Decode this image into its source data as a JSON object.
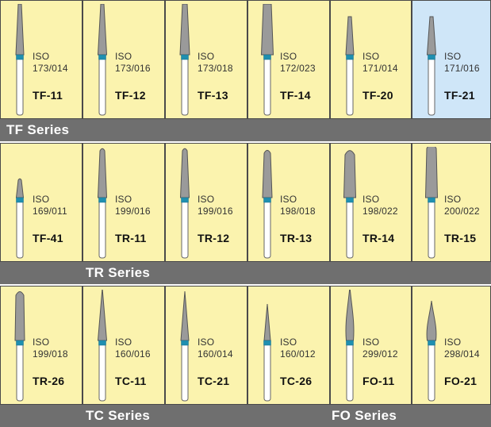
{
  "sections": [
    {
      "labels": [
        "TF Series"
      ],
      "items": [
        {
          "iso": "ISO",
          "size": "173/014",
          "code": "TF-11",
          "highlight": false
        },
        {
          "iso": "ISO",
          "size": "173/016",
          "code": "TF-12",
          "highlight": false
        },
        {
          "iso": "ISO",
          "size": "173/018",
          "code": "TF-13",
          "highlight": false
        },
        {
          "iso": "ISO",
          "size": "172/023",
          "code": "TF-14",
          "highlight": false
        },
        {
          "iso": "ISO",
          "size": "171/014",
          "code": "TF-20",
          "highlight": false
        },
        {
          "iso": "ISO",
          "size": "171/016",
          "code": "TF-21",
          "highlight": true
        }
      ]
    },
    {
      "labels": [
        "TR Series"
      ],
      "items": [
        {
          "iso": "ISO",
          "size": "169/011",
          "code": "TF-41",
          "highlight": false
        },
        {
          "iso": "ISO",
          "size": "199/016",
          "code": "TR-11",
          "highlight": false
        },
        {
          "iso": "ISO",
          "size": "199/016",
          "code": "TR-12",
          "highlight": false
        },
        {
          "iso": "ISO",
          "size": "198/018",
          "code": "TR-13",
          "highlight": false
        },
        {
          "iso": "ISO",
          "size": "198/022",
          "code": "TR-14",
          "highlight": false
        },
        {
          "iso": "ISO",
          "size": "200/022",
          "code": "TR-15",
          "highlight": false
        }
      ]
    },
    {
      "labels": [
        "TC Series",
        "FO Series"
      ],
      "items": [
        {
          "iso": "ISO",
          "size": "199/018",
          "code": "TR-26",
          "highlight": false
        },
        {
          "iso": "ISO",
          "size": "160/016",
          "code": "TC-11",
          "highlight": false
        },
        {
          "iso": "ISO",
          "size": "160/014",
          "code": "TC-21",
          "highlight": false
        },
        {
          "iso": "ISO",
          "size": "160/012",
          "code": "TC-26",
          "highlight": false
        },
        {
          "iso": "ISO",
          "size": "299/012",
          "code": "FO-11",
          "highlight": false
        },
        {
          "iso": "ISO",
          "size": "298/014",
          "code": "FO-21",
          "highlight": false
        }
      ]
    }
  ],
  "colors": {
    "cell": "#fbf3ae",
    "cell_highlight": "#cfe6f8",
    "bar": "#6f6f6f",
    "bur_head": "#9a9a9a",
    "bur_band": "#1f8fb0",
    "bur_shank": "#ffffff"
  },
  "icons": [
    "tapered-flat-diamond-bur-icon",
    "tapered-round-diamond-bur-icon",
    "tapered-conical-diamond-bur-icon",
    "flame-diamond-bur-icon"
  ]
}
